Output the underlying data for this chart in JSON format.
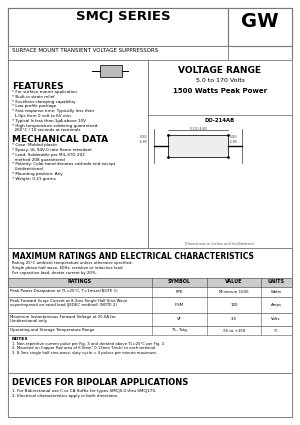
{
  "title": "SMCJ SERIES",
  "subtitle": "SURFACE MOUNT TRANSIENT VOLTAGE SUPPRESSORS",
  "logo": "GW",
  "voltage_range_title": "VOLTAGE RANGE",
  "voltage_range": "5.0 to 170 Volts",
  "power": "1500 Watts Peak Power",
  "package": "DO-214AB",
  "features_title": "FEATURES",
  "features": [
    "* For surface mount application",
    "* Built-in strain relief",
    "* Excellent clamping capability",
    "* Low profile package",
    "* Fast response time: Typically less than",
    "  1.0ps from 0 volt to 6V min.",
    "* Typical Is less than 1μA above 10V",
    "* High temperature soldering guaranteed:",
    "  260°C / 10 seconds at terminals"
  ],
  "mech_title": "MECHANICAL DATA",
  "mech": [
    "* Case: Molded plastic",
    "* Epoxy: UL 94V-0 rate flame retardant",
    "* Lead: Solderable per MIL-STD-202",
    "  method 208 guaranteed",
    "* Polarity: Color band denotes cathode end except",
    "  Unidirectional",
    "* Mounting position: Any",
    "* Weight: 0.21 grams"
  ],
  "ratings_title": "MAXIMUM RATINGS AND ELECTRICAL CHARACTERISTICS",
  "ratings_note1": "Rating 25°C ambient temperature unless otherwise specified.",
  "ratings_note2": "Single phase half wave, 60Hz, resistive or inductive load.",
  "ratings_note3": "For capacitive load, derate current by 20%.",
  "table_headers": [
    "RATINGS",
    "SYMBOL",
    "VALUE",
    "UNITS"
  ],
  "table_rows": [
    [
      "Peak Power Dissipation at TL=25°C, T=1msec(NOTE 1)",
      "PPK",
      "Minimum 1500",
      "Watts"
    ],
    [
      "Peak Forward Surge Current at 8.3ms Single Half Sine-Wave\nsuperimposed on rated load (JEDEC method) (NOTE 2)",
      "IFSM",
      "100",
      "Amps"
    ],
    [
      "Maximum Instantaneous Forward Voltage at 25.0A for\nUnidirectional only",
      "VF",
      "3.5",
      "Volts"
    ],
    [
      "Operating and Storage Temperature Range",
      "TL, Tstg",
      "-55 to +150",
      "°C"
    ]
  ],
  "notes_title": "NOTES",
  "notes": [
    "1. Non-repetitive current pulse per Fig. 3 and derated above TL=25°C per Fig. 2.",
    "2. Mounted on Copper Pad area of 6.5mm² 0.13mm Thick) to each terminal.",
    "3. 8.3ms single half sine-wave, duty cycle = 4 pulses per minute maximum."
  ],
  "bipolar_title": "DEVICES FOR BIPOLAR APPLICATIONS",
  "bipolar": [
    "1. For Bidirectional use C or CA Suffix for types SMCJ5.0 thru SMCJ170.",
    "2. Electrical characteristics apply in both directions."
  ],
  "bg_color": "#ffffff",
  "border_color": "#888888",
  "text_color": "#000000",
  "table_header_bg": "#cccccc"
}
